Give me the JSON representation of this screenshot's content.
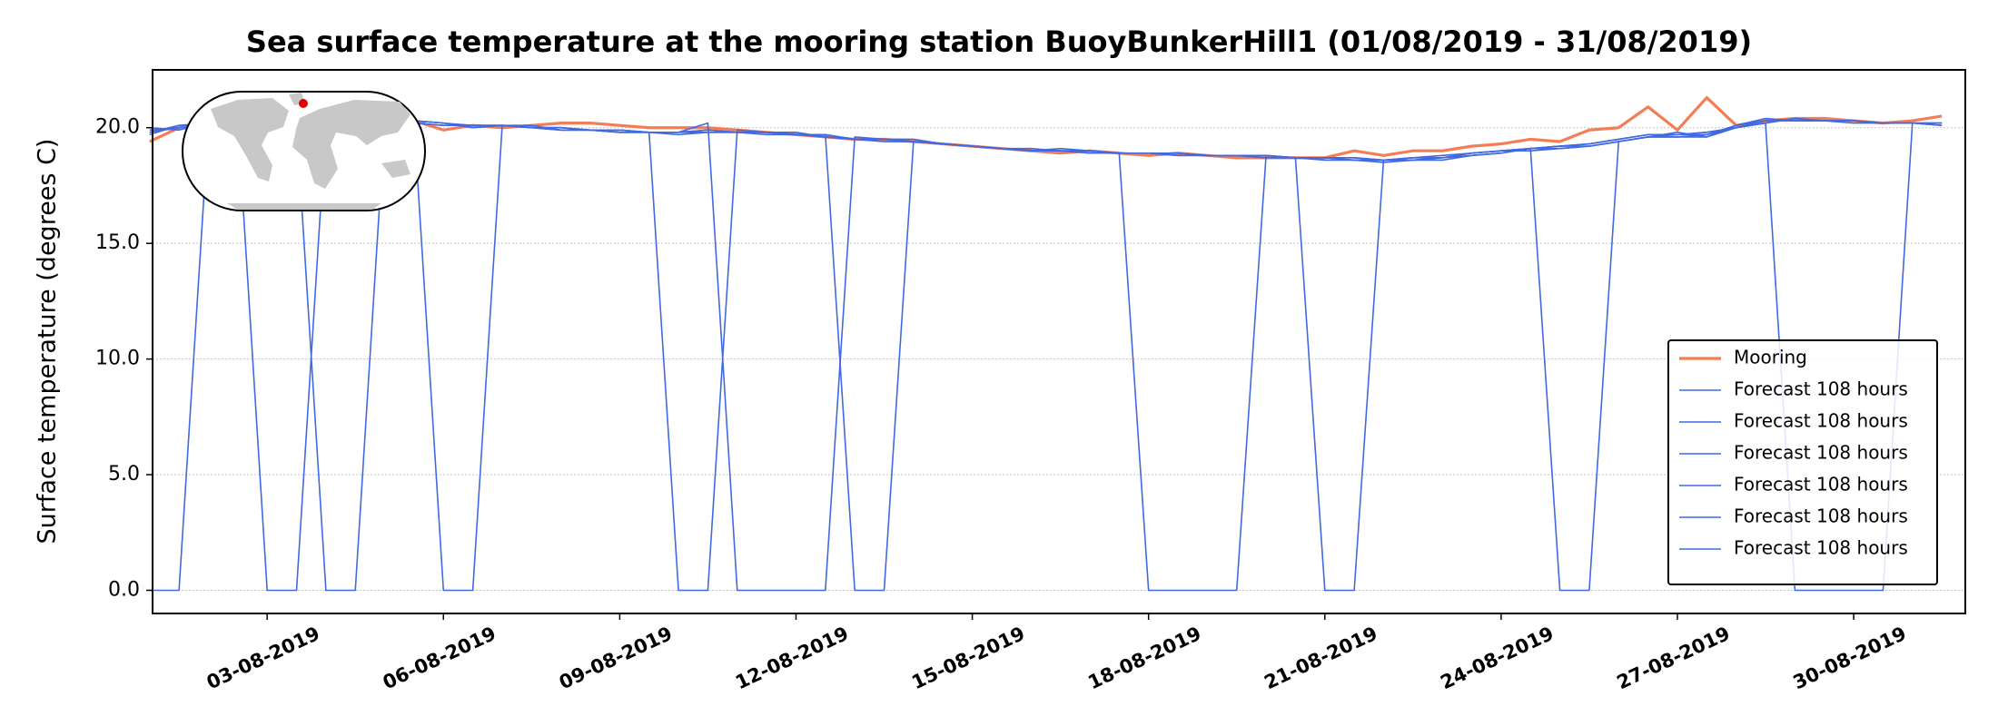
{
  "chart_data": {
    "type": "line",
    "title": "Sea surface temperature at the mooring station BuoyBunkerHill1 (01/08/2019 - 31/08/2019)",
    "ylabel": "Surface temperature (degrees C)",
    "x": [
      1,
      1.5,
      2,
      2.5,
      3,
      3.5,
      4,
      4.5,
      5,
      5.5,
      6,
      6.5,
      7,
      7.5,
      8,
      8.5,
      9,
      9.5,
      10,
      10.5,
      11,
      11.5,
      12,
      12.5,
      13,
      13.5,
      14,
      14.5,
      15,
      15.5,
      16,
      16.5,
      17,
      17.5,
      18,
      18.5,
      19,
      19.5,
      20,
      20.5,
      21,
      21.5,
      22,
      22.5,
      23,
      23.5,
      24,
      24.5,
      25,
      25.5,
      26,
      26.5,
      27,
      27.5,
      28,
      28.5,
      29,
      29.5,
      30,
      30.5,
      31,
      31.5
    ],
    "xlim": [
      1.05,
      31.9
    ],
    "xticks": [
      {
        "value": 3,
        "label": "03-08-2019"
      },
      {
        "value": 6,
        "label": "06-08-2019"
      },
      {
        "value": 9,
        "label": "09-08-2019"
      },
      {
        "value": 12,
        "label": "12-08-2019"
      },
      {
        "value": 15,
        "label": "15-08-2019"
      },
      {
        "value": 18,
        "label": "18-08-2019"
      },
      {
        "value": 21,
        "label": "21-08-2019"
      },
      {
        "value": 24,
        "label": "24-08-2019"
      },
      {
        "value": 27,
        "label": "27-08-2019"
      },
      {
        "value": 30,
        "label": "30-08-2019"
      }
    ],
    "ylim": [
      -1,
      22.5
    ],
    "yticks": [
      {
        "value": 0,
        "label": "0.0"
      },
      {
        "value": 5,
        "label": "5.0"
      },
      {
        "value": 10,
        "label": "10.0"
      },
      {
        "value": 15,
        "label": "15.0"
      },
      {
        "value": 20,
        "label": "20.0"
      }
    ],
    "grid": true,
    "legend": "lower right",
    "series": [
      {
        "name": "Mooring",
        "color": "#f47d56",
        "width": 3.2,
        "values": [
          19.4,
          20.0,
          20.3,
          20.2,
          20.1,
          20.0,
          20.3,
          20.1,
          20.2,
          20.3,
          19.9,
          20.1,
          20.0,
          20.1,
          20.2,
          20.2,
          20.1,
          20.0,
          20.0,
          20.0,
          19.9,
          19.8,
          19.7,
          19.6,
          19.5,
          19.5,
          19.4,
          19.3,
          19.2,
          19.1,
          19.0,
          18.9,
          19.0,
          18.9,
          18.8,
          18.9,
          18.8,
          18.7,
          18.7,
          18.7,
          18.7,
          19.0,
          18.8,
          19.0,
          19.0,
          19.2,
          19.3,
          19.5,
          19.4,
          19.9,
          20.0,
          20.9,
          19.9,
          21.3,
          20.1,
          20.3,
          20.4,
          20.4,
          20.3,
          20.2,
          20.3,
          20.5
        ]
      },
      {
        "name": "Forecast 108 hours",
        "color": "#4169e1",
        "width": 1.6,
        "values": [
          0,
          0,
          20.1,
          20.2,
          20.2,
          20.1,
          20.3,
          20.2,
          20.3,
          20.2,
          0,
          0,
          20.1,
          20.0,
          20.0,
          19.9,
          19.9,
          19.8,
          19.8,
          19.9,
          19.8,
          19.8,
          19.7,
          19.7,
          19.5,
          19.5,
          19.4,
          19.3,
          19.2,
          19.1,
          19.0,
          19.0,
          19.0,
          18.9,
          0,
          0,
          0,
          0,
          18.8,
          18.7,
          18.7,
          18.7,
          18.6,
          18.7,
          18.7,
          18.9,
          19.0,
          19.1,
          19.2,
          19.3,
          19.5,
          19.7,
          19.7,
          19.8,
          20.0,
          20.2,
          0,
          0,
          0,
          0,
          20.2,
          20.2
        ]
      },
      {
        "name": "Forecast 108 hours",
        "color": "#4169e1",
        "width": 1.6,
        "values": [
          19.7,
          20.1,
          20.2,
          20.3,
          0,
          0,
          20.2,
          20.1,
          20.2,
          20.3,
          20.2,
          20.0,
          20.1,
          20.1,
          19.9,
          19.9,
          19.8,
          19.8,
          0,
          0,
          19.9,
          19.8,
          19.8,
          19.6,
          19.5,
          19.4,
          19.4,
          19.3,
          19.2,
          19.1,
          19.1,
          19.0,
          18.9,
          18.9,
          18.9,
          18.8,
          18.8,
          18.8,
          18.7,
          18.7,
          0,
          0,
          18.6,
          18.6,
          18.6,
          18.8,
          18.9,
          19.1,
          19.2,
          19.2,
          19.4,
          19.6,
          19.7,
          19.7,
          20.1,
          20.4,
          20.3,
          20.3,
          20.2,
          20.2,
          20.2,
          20.1
        ]
      },
      {
        "name": "Forecast 108 hours",
        "color": "#4169e1",
        "width": 1.6,
        "values": [
          20.0,
          19.9,
          20.2,
          20.2,
          20.1,
          20.2,
          0,
          0,
          20.2,
          20.3,
          20.2,
          20.1,
          20.1,
          20.0,
          19.9,
          19.9,
          19.8,
          19.8,
          19.8,
          20.2,
          0,
          0,
          0,
          0,
          19.6,
          19.5,
          19.5,
          19.3,
          19.2,
          19.1,
          19.0,
          19.1,
          19.0,
          18.9,
          18.9,
          18.9,
          18.8,
          18.8,
          18.8,
          18.7,
          18.6,
          18.6,
          18.6,
          18.7,
          18.8,
          18.9,
          19.0,
          19.1,
          0,
          0,
          19.4,
          19.6,
          19.8,
          19.6,
          20.1,
          20.3,
          20.3,
          20.3,
          20.3,
          20.2,
          20.2,
          20.1
        ]
      },
      {
        "name": "Forecast 108 hours",
        "color": "#4169e1",
        "width": 1.6,
        "values": [
          19.9,
          20.0,
          20.1,
          20.2,
          20.2,
          20.1,
          20.4,
          20.3,
          20.3,
          20.2,
          20.1,
          20.1,
          20.1,
          20.0,
          19.9,
          19.9,
          19.8,
          19.8,
          19.8,
          19.8,
          19.8,
          19.8,
          19.7,
          19.7,
          0,
          0,
          19.4,
          19.3,
          19.2,
          19.1,
          19.0,
          19.0,
          19.0,
          18.9,
          18.9,
          18.8,
          18.8,
          18.8,
          18.7,
          18.7,
          18.7,
          18.6,
          18.6,
          18.6,
          18.7,
          18.8,
          18.9,
          19.1,
          19.1,
          19.2,
          19.4,
          19.6,
          19.6,
          19.7,
          20.0,
          20.2,
          20.4,
          20.3,
          20.3,
          20.2,
          20.2,
          20.2
        ]
      },
      {
        "name": "Forecast 108 hours",
        "color": "#4169e1",
        "width": 1.6,
        "values": [
          19.8,
          20.0,
          20.1,
          20.2,
          20.1,
          20.0,
          20.3,
          20.2,
          20.3,
          20.3,
          20.2,
          20.0,
          20.1,
          20.0,
          20.0,
          19.9,
          19.9,
          19.8,
          19.7,
          19.8,
          19.8,
          19.7,
          19.7,
          19.6,
          19.5,
          19.5,
          19.4,
          19.3,
          19.2,
          19.1,
          19.0,
          19.0,
          18.9,
          18.9,
          18.9,
          18.9,
          18.8,
          18.8,
          18.7,
          18.7,
          18.7,
          18.6,
          18.5,
          18.6,
          18.7,
          18.9,
          19.0,
          19.0,
          19.1,
          19.2,
          19.4,
          19.6,
          19.6,
          19.6,
          20.0,
          20.3,
          20.3,
          20.3,
          20.3,
          20.2,
          20.2,
          20.2
        ]
      },
      {
        "name": "Forecast 108 hours",
        "color": "#4169e1",
        "width": 1.6,
        "values": [
          19.8,
          20.1,
          20.1,
          20.3,
          20.2,
          20.1,
          20.3,
          20.2,
          20.4,
          20.2,
          20.1,
          20.1,
          20.1,
          20.0,
          20.0,
          19.9,
          19.9,
          19.8,
          19.8,
          19.9,
          19.8,
          19.8,
          19.7,
          19.7,
          19.5,
          19.5,
          19.4,
          19.3,
          19.2,
          19.1,
          19.0,
          19.0,
          19.0,
          18.9,
          18.9,
          18.9,
          18.8,
          18.8,
          18.8,
          18.7,
          18.7,
          18.7,
          18.6,
          18.7,
          18.7,
          18.9,
          19.0,
          19.1,
          19.2,
          19.3,
          19.5,
          19.7,
          19.7,
          19.8,
          20.0,
          20.2,
          20.4,
          20.3,
          20.3,
          20.2,
          20.2,
          20.2
        ]
      }
    ]
  }
}
